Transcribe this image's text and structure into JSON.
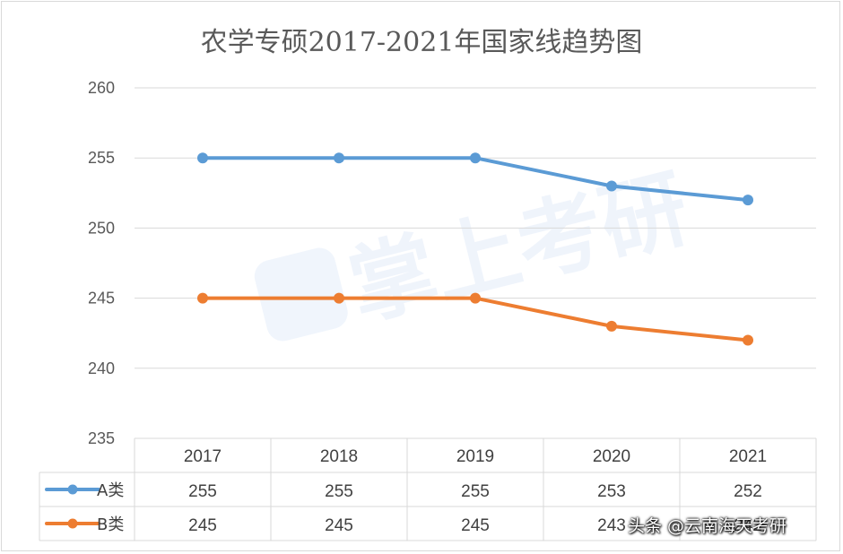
{
  "title": "农学专硕2017-2021年国家线趋势图",
  "watermark": "掌上考研",
  "credit": "头条 @云南海天考研",
  "colors": {
    "seriesA": "#5b9bd5",
    "seriesB": "#ed7d31",
    "grid": "#d9d9d9",
    "text": "#595959"
  },
  "chart_data": {
    "type": "line",
    "title": "农学专硕2017-2021年国家线趋势图",
    "categories": [
      "2017",
      "2018",
      "2019",
      "2020",
      "2021"
    ],
    "series": [
      {
        "name": "A类",
        "values": [
          255,
          255,
          255,
          253,
          252
        ],
        "color": "#5b9bd5"
      },
      {
        "name": "B类",
        "values": [
          245,
          245,
          245,
          243,
          242
        ],
        "color": "#ed7d31"
      }
    ],
    "ylim": [
      235,
      260
    ],
    "yticks": [
      "235",
      "240",
      "245",
      "250",
      "255",
      "260"
    ],
    "grid": true,
    "data_table": true
  }
}
